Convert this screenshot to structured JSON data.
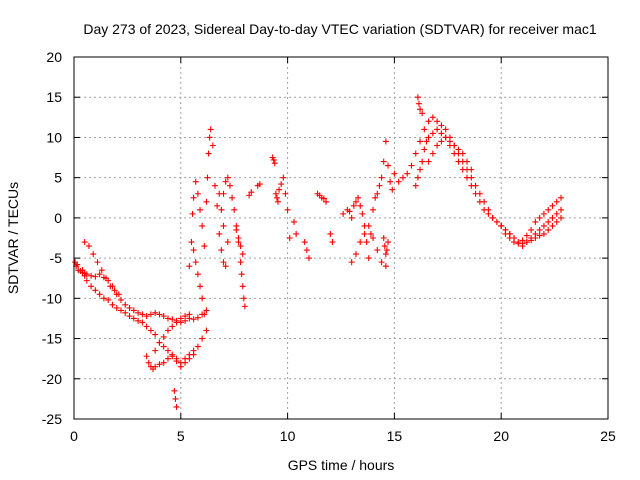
{
  "chart_data": {
    "type": "scatter",
    "title": "Day 273 of 2023, Sidereal Day-to-day VTEC variation (SDTVAR) for receiver mac1",
    "xlabel": "GPS time / hours",
    "ylabel": "SDTVAR / TECUs",
    "xlim": [
      0,
      25
    ],
    "ylim": [
      -25,
      20
    ],
    "xticks": [
      0,
      5,
      10,
      15,
      20,
      25
    ],
    "yticks": [
      -25,
      -20,
      -15,
      -10,
      -5,
      0,
      5,
      10,
      15,
      20
    ],
    "grid": true,
    "marker": "+",
    "series": [
      {
        "name": "SDTVAR",
        "color": "#ff0000",
        "x": [
          0.05,
          0.1,
          0.15,
          0.2,
          0.3,
          0.4,
          0.5,
          0.6,
          0.8,
          1.0,
          1.2,
          1.4,
          1.6,
          1.8,
          2.0,
          2.2,
          2.4,
          2.6,
          2.8,
          3.0,
          3.2,
          3.4,
          3.6,
          3.8,
          4.0,
          4.2,
          4.4,
          4.6,
          4.8,
          5.0,
          5.2,
          5.4,
          5.6,
          5.8,
          6.0,
          6.2,
          0.4,
          0.5,
          0.6,
          0.8,
          1.0,
          1.2,
          1.4,
          1.6,
          1.8,
          2.0,
          2.2,
          2.4,
          2.6,
          2.8,
          3.0,
          3.2,
          3.4,
          3.6,
          3.8,
          4.0,
          4.2,
          4.4,
          4.6,
          4.8,
          5.0,
          5.2,
          5.4,
          5.6,
          5.8,
          6.0,
          0.5,
          0.7,
          0.9,
          1.1,
          1.3,
          1.5,
          1.7,
          1.9,
          2.1,
          3.4,
          3.5,
          3.6,
          3.7,
          3.8,
          4.0,
          4.2,
          4.4,
          4.6,
          4.8,
          5.0,
          5.2,
          5.4,
          5.6,
          3.8,
          4.0,
          4.2,
          4.4,
          4.6,
          4.8,
          5.0,
          5.2,
          5.4,
          4.7,
          4.75,
          4.8,
          5.4,
          5.5,
          5.55,
          5.6,
          5.7,
          5.8,
          5.9,
          6.0,
          6.1,
          6.2,
          6.25,
          6.3,
          6.35,
          6.4,
          6.5,
          6.6,
          6.7,
          6.8,
          6.9,
          7.0,
          5.6,
          5.7,
          5.8,
          5.9,
          6.0,
          6.1,
          6.2,
          7.0,
          7.1,
          7.2,
          7.3,
          7.4,
          7.5,
          7.6,
          7.7,
          7.8,
          7.85,
          7.9,
          7.95,
          8.0,
          6.8,
          6.9,
          7.0,
          7.1,
          7.2,
          7.6,
          7.7,
          7.8,
          7.9,
          8.2,
          8.3,
          8.6,
          8.7,
          9.3,
          9.35,
          9.4,
          9.45,
          9.5,
          9.55,
          9.6,
          9.7,
          9.8,
          9.9,
          10.0,
          10.1,
          10.3,
          10.4,
          10.8,
          10.9,
          11.0,
          11.4,
          11.5,
          11.6,
          11.7,
          11.8,
          12.0,
          12.1,
          12.6,
          12.8,
          12.9,
          13.0,
          13.1,
          13.2,
          13.3,
          13.4,
          13.5,
          13.6,
          13.7,
          13.8,
          13.9,
          14.0,
          14.1,
          14.2,
          14.3,
          14.4,
          14.5,
          14.6,
          14.7,
          14.8,
          14.9,
          15.0,
          13.0,
          13.2,
          13.4,
          13.6,
          13.8,
          14.0,
          14.2,
          14.4,
          14.6,
          14.5,
          14.55,
          14.6,
          14.65,
          14.7,
          15.2,
          15.4,
          15.6,
          15.8,
          16.0,
          16.2,
          16.4,
          16.6,
          16.8,
          17.0,
          17.2,
          17.4,
          17.6,
          17.8,
          18.0,
          18.2,
          18.4,
          18.6,
          18.8,
          19.0,
          19.2,
          19.4,
          19.6,
          19.8,
          20.0,
          20.2,
          20.4,
          20.6,
          16.0,
          16.1,
          16.2,
          16.3,
          16.4,
          16.5,
          16.6,
          16.8,
          17.0,
          17.2,
          17.4,
          17.6,
          17.8,
          18.0,
          18.2,
          18.4,
          18.6,
          16.6,
          16.8,
          17.0,
          17.2,
          17.4,
          17.6,
          17.8,
          18.0,
          18.2,
          18.4,
          18.6,
          18.8,
          19.0,
          19.2,
          19.4,
          19.6,
          19.8,
          20.0,
          20.2,
          20.4,
          20.6,
          20.8,
          21.0,
          21.2,
          21.4,
          21.6,
          21.8,
          22.0,
          22.2,
          22.4,
          22.6,
          22.8,
          16.1,
          16.15,
          16.2,
          16.3,
          20.0,
          20.2,
          20.4,
          20.6,
          20.8,
          21.0,
          21.2,
          21.4,
          21.6,
          21.8,
          22.0,
          22.2,
          22.4,
          22.6,
          22.8,
          21.0,
          21.2,
          21.4,
          21.6,
          21.8,
          22.0,
          22.2,
          22.4,
          22.6,
          22.8
        ],
        "y": [
          -5.5,
          -6.0,
          -5.8,
          -6.5,
          -6.6,
          -6.8,
          -6.9,
          -7.0,
          -7.2,
          -7.3,
          -7.0,
          -7.4,
          -7.8,
          -8.5,
          -9.5,
          -10.2,
          -10.8,
          -11.2,
          -11.5,
          -11.8,
          -12.0,
          -12.2,
          -12.0,
          -11.8,
          -12.0,
          -12.2,
          -12.5,
          -12.6,
          -12.8,
          -13.0,
          -12.8,
          -12.5,
          -12.6,
          -12.4,
          -12.0,
          -11.5,
          -6.5,
          -7.2,
          -7.8,
          -8.5,
          -9.0,
          -9.5,
          -10.0,
          -10.2,
          -10.8,
          -11.2,
          -11.5,
          -11.8,
          -12.2,
          -12.5,
          -12.8,
          -13.0,
          -13.5,
          -14.0,
          -14.5,
          -15.5,
          -16.0,
          -16.5,
          -17.0,
          -17.5,
          -18.0,
          -17.5,
          -17.0,
          -16.5,
          -16.0,
          -15.0,
          -3.0,
          -3.5,
          -4.5,
          -5.5,
          -6.5,
          -7.5,
          -8.5,
          -9.0,
          -9.5,
          -17.2,
          -18.0,
          -18.5,
          -18.8,
          -18.5,
          -18.2,
          -18.0,
          -17.5,
          -17.2,
          -17.8,
          -18.5,
          -18.0,
          -17.5,
          -17.0,
          -16.5,
          -15.5,
          -14.8,
          -14.0,
          -13.5,
          -13.0,
          -12.5,
          -12.2,
          -12.0,
          -21.5,
          -22.5,
          -23.5,
          -6.0,
          -3.0,
          0.5,
          2.5,
          4.5,
          3.0,
          1.0,
          -1.0,
          -3.5,
          2.0,
          5.0,
          8.0,
          10.0,
          11.0,
          9.0,
          4.0,
          1.5,
          3.0,
          1.0,
          -1.0,
          -4.0,
          -5.5,
          -7.0,
          -8.5,
          -10.0,
          -12.0,
          -14.0,
          3.0,
          4.5,
          5.0,
          4.0,
          2.5,
          1.0,
          -1.5,
          -3.0,
          -5.5,
          -7.0,
          -8.5,
          -10.0,
          -11.0,
          -2.0,
          -4.0,
          -5.5,
          -6.0,
          -3.0,
          -1.0,
          -2.5,
          -3.5,
          -4.5,
          2.8,
          3.2,
          4.0,
          4.2,
          7.5,
          7.2,
          6.8,
          3.0,
          2.5,
          2.0,
          3.5,
          4.2,
          5.0,
          3.0,
          1.0,
          -2.5,
          -0.5,
          -2.0,
          -3.0,
          -4.0,
          -5.0,
          3.0,
          2.8,
          2.5,
          2.4,
          2.0,
          -2.0,
          -3.0,
          0.5,
          1.0,
          0.8,
          0.0,
          1.5,
          2.0,
          2.5,
          1.5,
          0.5,
          -1.0,
          -3.0,
          -5.0,
          -2.0,
          1.0,
          2.5,
          3.0,
          4.0,
          5.0,
          7.0,
          9.5,
          6.5,
          4.5,
          3.5,
          5.5,
          -5.5,
          -4.5,
          -3.0,
          -2.0,
          -1.0,
          -2.5,
          -4.0,
          -5.5,
          -6.0,
          -2.5,
          -3.5,
          -4.5,
          -4.0,
          -3.0,
          4.5,
          5.0,
          5.5,
          6.5,
          8.0,
          9.5,
          11.0,
          12.0,
          12.5,
          12.0,
          11.5,
          11.0,
          10.0,
          9.0,
          8.0,
          7.0,
          6.0,
          5.0,
          4.0,
          3.0,
          2.0,
          1.0,
          0.0,
          -0.5,
          -1.0,
          -1.5,
          -2.0,
          -2.5,
          4.0,
          5.0,
          6.0,
          7.0,
          8.5,
          9.5,
          10.0,
          10.5,
          11.0,
          10.5,
          10.0,
          9.5,
          9.0,
          8.5,
          8.0,
          7.0,
          6.0,
          7.0,
          8.0,
          9.0,
          9.5,
          10.0,
          9.0,
          8.0,
          7.0,
          6.0,
          5.0,
          4.0,
          3.0,
          2.0,
          1.0,
          0.5,
          0.0,
          -0.5,
          -1.0,
          -1.5,
          -2.0,
          -2.5,
          -3.0,
          -3.2,
          -3.0,
          -2.8,
          -2.5,
          -2.2,
          -2.0,
          -1.5,
          -1.0,
          -0.5,
          0.0,
          15.0,
          14.2,
          13.5,
          13.0,
          -1.0,
          -2.0,
          -2.5,
          -3.0,
          -3.2,
          -2.8,
          -2.2,
          -1.5,
          -0.5,
          0.0,
          0.5,
          1.0,
          1.5,
          2.0,
          2.5,
          -3.5,
          -3.0,
          -2.5,
          -2.0,
          -1.5,
          -1.0,
          -0.5,
          0.0,
          0.5,
          1.0
        ]
      }
    ]
  }
}
